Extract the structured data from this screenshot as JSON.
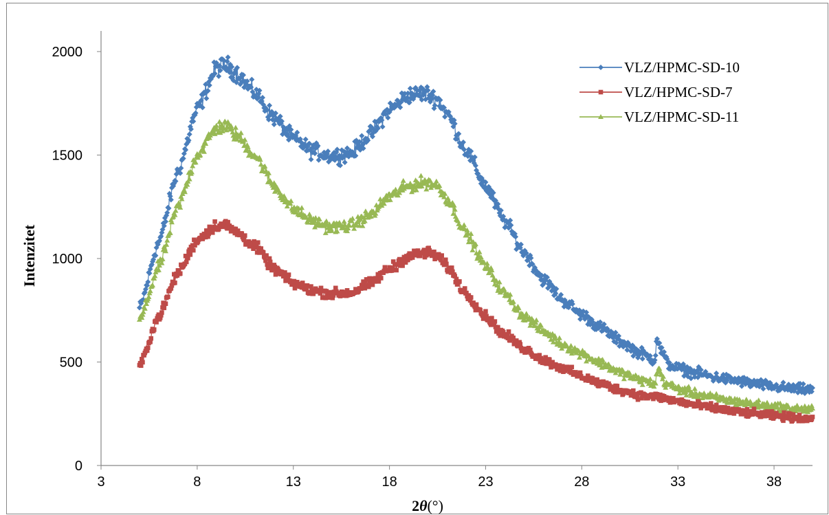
{
  "chart_data": {
    "type": "scatter",
    "xlabel_main": "2",
    "xlabel_theta": "θ",
    "xlabel_unit": "(°)",
    "ylabel": "Intenzitet",
    "xlim": [
      3,
      40
    ],
    "ylim": [
      0,
      2000
    ],
    "xticks": [
      "3",
      "8",
      "13",
      "18",
      "23",
      "28",
      "33",
      "38"
    ],
    "yticks": [
      "0",
      "500",
      "1000",
      "1500",
      "2000"
    ],
    "legend_position": "top-right",
    "x_range": [
      5,
      40
    ],
    "x_step": 0.04,
    "series": [
      {
        "name": "VLZ/HPMC-SD-10",
        "color": "#4a7ebb",
        "marker": "diamond",
        "noise": 28,
        "key_points": [
          [
            5,
            760
          ],
          [
            6,
            1080
          ],
          [
            7,
            1420
          ],
          [
            8,
            1720
          ],
          [
            9,
            1920
          ],
          [
            9.5,
            1935
          ],
          [
            10,
            1900
          ],
          [
            11,
            1800
          ],
          [
            12,
            1680
          ],
          [
            13,
            1580
          ],
          [
            14,
            1520
          ],
          [
            15,
            1495
          ],
          [
            16,
            1510
          ],
          [
            17,
            1600
          ],
          [
            18,
            1720
          ],
          [
            19,
            1790
          ],
          [
            19.8,
            1800
          ],
          [
            20.5,
            1770
          ],
          [
            21,
            1700
          ],
          [
            22,
            1520
          ],
          [
            23,
            1350
          ],
          [
            24,
            1180
          ],
          [
            25,
            1030
          ],
          [
            26,
            900
          ],
          [
            27,
            800
          ],
          [
            28,
            730
          ],
          [
            29,
            665
          ],
          [
            30,
            600
          ],
          [
            31,
            545
          ],
          [
            31.8,
            510
          ],
          [
            31.9,
            620
          ],
          [
            32.1,
            560
          ],
          [
            32.5,
            490
          ],
          [
            33,
            470
          ],
          [
            34,
            445
          ],
          [
            35,
            425
          ],
          [
            36,
            410
          ],
          [
            37,
            395
          ],
          [
            38,
            380
          ],
          [
            39,
            370
          ],
          [
            40,
            365
          ]
        ]
      },
      {
        "name": "VLZ/HPMC-SD-7",
        "color": "#be4b48",
        "marker": "square",
        "noise": 22,
        "key_points": [
          [
            5,
            480
          ],
          [
            6,
            720
          ],
          [
            7,
            930
          ],
          [
            8,
            1090
          ],
          [
            9,
            1160
          ],
          [
            9.5,
            1160
          ],
          [
            10,
            1130
          ],
          [
            11,
            1060
          ],
          [
            12,
            950
          ],
          [
            13,
            880
          ],
          [
            14,
            845
          ],
          [
            15,
            830
          ],
          [
            16,
            835
          ],
          [
            17,
            880
          ],
          [
            18,
            950
          ],
          [
            19,
            1010
          ],
          [
            20,
            1030
          ],
          [
            20.5,
            1010
          ],
          [
            21,
            960
          ],
          [
            22,
            830
          ],
          [
            23,
            720
          ],
          [
            24,
            630
          ],
          [
            25,
            565
          ],
          [
            26,
            510
          ],
          [
            27,
            470
          ],
          [
            28,
            430
          ],
          [
            29,
            395
          ],
          [
            30,
            365
          ],
          [
            31,
            340
          ],
          [
            32,
            330
          ],
          [
            33,
            310
          ],
          [
            34,
            290
          ],
          [
            35,
            275
          ],
          [
            36,
            260
          ],
          [
            37,
            250
          ],
          [
            38,
            240
          ],
          [
            39,
            232
          ],
          [
            40,
            225
          ]
        ]
      },
      {
        "name": "VLZ/HPMC-SD-11",
        "color": "#98b954",
        "marker": "triangle",
        "noise": 24,
        "key_points": [
          [
            5,
            700
          ],
          [
            6,
            960
          ],
          [
            7,
            1250
          ],
          [
            8,
            1500
          ],
          [
            9,
            1630
          ],
          [
            9.5,
            1640
          ],
          [
            10,
            1600
          ],
          [
            11,
            1500
          ],
          [
            12,
            1350
          ],
          [
            13,
            1240
          ],
          [
            14,
            1180
          ],
          [
            15,
            1150
          ],
          [
            16,
            1160
          ],
          [
            17,
            1210
          ],
          [
            18,
            1300
          ],
          [
            19,
            1350
          ],
          [
            20,
            1370
          ],
          [
            20.5,
            1350
          ],
          [
            21,
            1290
          ],
          [
            22,
            1120
          ],
          [
            23,
            960
          ],
          [
            24,
            830
          ],
          [
            25,
            720
          ],
          [
            26,
            650
          ],
          [
            27,
            585
          ],
          [
            28,
            540
          ],
          [
            29,
            495
          ],
          [
            30,
            450
          ],
          [
            31,
            415
          ],
          [
            31.8,
            395
          ],
          [
            32,
            470
          ],
          [
            32.3,
            400
          ],
          [
            33,
            370
          ],
          [
            34,
            345
          ],
          [
            35,
            325
          ],
          [
            36,
            310
          ],
          [
            37,
            295
          ],
          [
            38,
            285
          ],
          [
            39,
            275
          ],
          [
            40,
            270
          ]
        ]
      }
    ]
  }
}
